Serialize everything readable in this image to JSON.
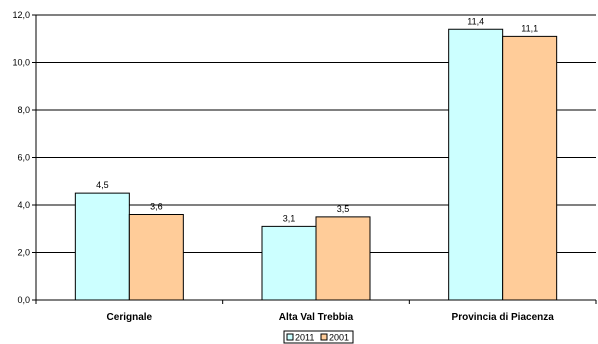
{
  "chart_data": {
    "type": "bar",
    "categories": [
      "Cerignale",
      "Alta Val Trebbia",
      "Provincia di Piacenza"
    ],
    "series": [
      {
        "name": "2011",
        "values": [
          4.5,
          3.1,
          11.4
        ],
        "value_labels": [
          "4,5",
          "3,1",
          "11,4"
        ],
        "color": "#ccffff"
      },
      {
        "name": "2001",
        "values": [
          3.6,
          3.5,
          11.1
        ],
        "value_labels": [
          "3,6",
          "3,5",
          "11,1"
        ],
        "color": "#ffcc99"
      }
    ],
    "ylim": [
      0,
      12
    ],
    "yticks": [
      0,
      2,
      4,
      6,
      8,
      10,
      12
    ],
    "ytick_labels": [
      "0,0",
      "2,0",
      "4,0",
      "6,0",
      "8,0",
      "10,0",
      "12,0"
    ],
    "grid": true,
    "legend_position": "bottom"
  }
}
